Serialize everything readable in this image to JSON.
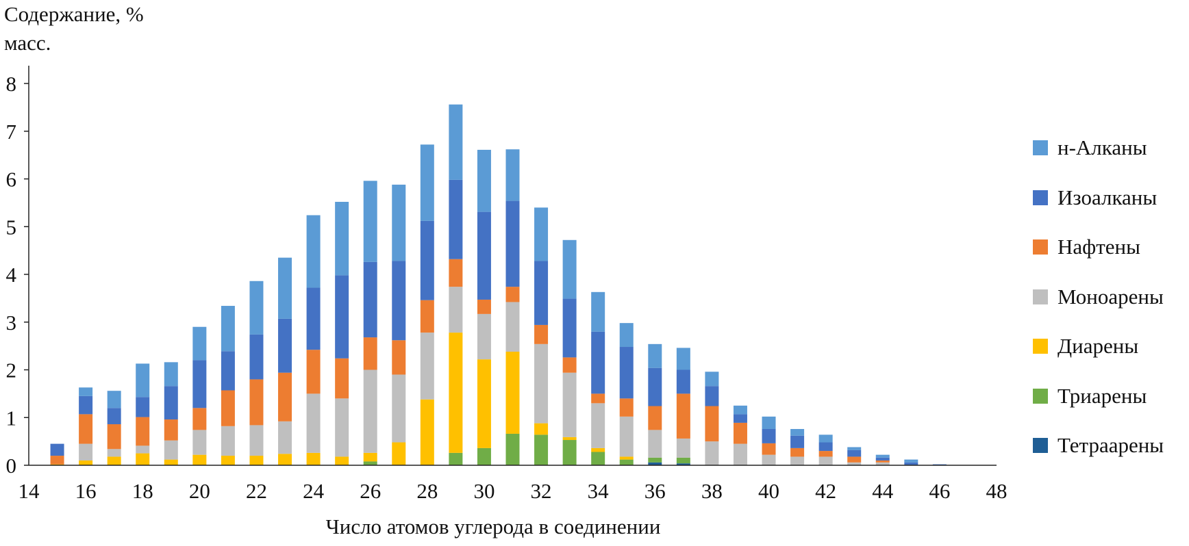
{
  "chart_data": {
    "type": "bar",
    "stacked": true,
    "ylabel_lines": [
      "Содержание, %",
      "масс."
    ],
    "xlabel": "Число атомов углерода в соединении",
    "xlim": [
      14,
      48
    ],
    "ylim": [
      0,
      8
    ],
    "x_ticks": [
      14,
      16,
      18,
      20,
      22,
      24,
      26,
      28,
      30,
      32,
      34,
      36,
      38,
      40,
      42,
      44,
      46,
      48
    ],
    "y_ticks": [
      0,
      1,
      2,
      3,
      4,
      5,
      6,
      7,
      8
    ],
    "legend_position": "right",
    "x": [
      15,
      16,
      17,
      18,
      19,
      20,
      21,
      22,
      23,
      24,
      25,
      26,
      27,
      28,
      29,
      30,
      31,
      32,
      33,
      34,
      35,
      36,
      37,
      38,
      39,
      40,
      41,
      42,
      43,
      44,
      45,
      46,
      47
    ],
    "series": [
      {
        "name": "Тетраарены",
        "color": "#1f5e95",
        "values": [
          0,
          0,
          0,
          0,
          0,
          0,
          0,
          0,
          0,
          0,
          0,
          0,
          0,
          0,
          0,
          0,
          0,
          0,
          0,
          0,
          0,
          0.06,
          0.04,
          0,
          0,
          0,
          0,
          0,
          0,
          0,
          0,
          0,
          0
        ]
      },
      {
        "name": "Триарены",
        "color": "#70ad47",
        "values": [
          0,
          0,
          0,
          0,
          0,
          0,
          0,
          0,
          0,
          0,
          0,
          0.08,
          0,
          0,
          0.26,
          0.36,
          0.66,
          0.64,
          0.53,
          0.28,
          0.12,
          0.1,
          0.12,
          0,
          0,
          0,
          0,
          0,
          0,
          0,
          0,
          0,
          0
        ]
      },
      {
        "name": "Диарены",
        "color": "#ffc000",
        "values": [
          0.02,
          0.1,
          0.18,
          0.25,
          0.12,
          0.22,
          0.2,
          0.2,
          0.24,
          0.26,
          0.18,
          0.18,
          0.48,
          1.38,
          2.52,
          1.86,
          1.72,
          0.24,
          0.06,
          0.08,
          0.06,
          0,
          0,
          0,
          0,
          0,
          0,
          0,
          0,
          0,
          0,
          0,
          0
        ]
      },
      {
        "name": "Моноарены",
        "color": "#bfbfbf",
        "values": [
          0,
          0.35,
          0.16,
          0.16,
          0.4,
          0.52,
          0.62,
          0.64,
          0.68,
          1.24,
          1.22,
          1.74,
          1.42,
          1.4,
          0.96,
          0.95,
          1.04,
          1.66,
          1.35,
          0.94,
          0.84,
          0.58,
          0.4,
          0.5,
          0.45,
          0.22,
          0.18,
          0.18,
          0.06,
          0.06,
          0,
          0,
          0
        ]
      },
      {
        "name": "Нафтены",
        "color": "#ed7d31",
        "values": [
          0.18,
          0.62,
          0.52,
          0.6,
          0.44,
          0.46,
          0.75,
          0.96,
          1.02,
          0.92,
          0.84,
          0.68,
          0.72,
          0.68,
          0.58,
          0.3,
          0.32,
          0.4,
          0.32,
          0.2,
          0.38,
          0.5,
          0.94,
          0.74,
          0.44,
          0.24,
          0.18,
          0.12,
          0.12,
          0.04,
          0,
          0,
          0
        ]
      },
      {
        "name": "Изоалканы",
        "color": "#4472c4",
        "values": [
          0.25,
          0.38,
          0.34,
          0.42,
          0.7,
          1.0,
          0.82,
          0.94,
          1.13,
          1.3,
          1.74,
          1.58,
          1.66,
          1.66,
          1.66,
          1.84,
          1.8,
          1.34,
          1.23,
          1.3,
          1.08,
          0.8,
          0.5,
          0.42,
          0.18,
          0.3,
          0.26,
          0.18,
          0.14,
          0.06,
          0.06,
          0.02,
          0
        ]
      },
      {
        "name": "н-Алканы",
        "color": "#5b9bd5",
        "values": [
          0,
          0.18,
          0.36,
          0.7,
          0.5,
          0.7,
          0.95,
          1.12,
          1.28,
          1.52,
          1.54,
          1.7,
          1.6,
          1.6,
          1.58,
          1.3,
          1.08,
          1.12,
          1.23,
          0.83,
          0.5,
          0.5,
          0.46,
          0.3,
          0.18,
          0.26,
          0.14,
          0.16,
          0.06,
          0.06,
          0.06,
          0,
          0
        ]
      }
    ],
    "legend_order": [
      "н-Алканы",
      "Изоалканы",
      "Нафтены",
      "Моноарены",
      "Диарены",
      "Триарены",
      "Тетраарены"
    ]
  }
}
